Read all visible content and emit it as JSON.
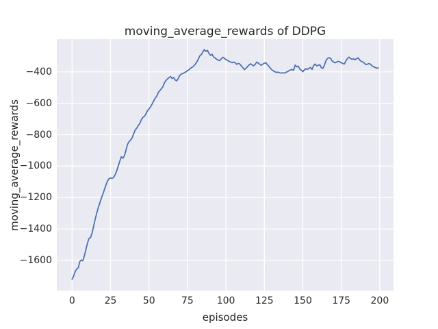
{
  "chart_data": {
    "type": "line",
    "title": "moving_average_rewards of DDPG",
    "xlabel": "episodes",
    "ylabel": "moving_average_rewards",
    "legend_position": "none",
    "grid": true,
    "plot_bg_color": "#EAEAF2",
    "grid_color": "#FFFFFF",
    "text_color": "#262626",
    "xlim": [
      -9.95,
      208.95
    ],
    "ylim": [
      -1792.8,
      -191.2
    ],
    "xticks": {
      "values": [
        0,
        25,
        50,
        75,
        100,
        125,
        150,
        175,
        200
      ],
      "labels": [
        "0",
        "25",
        "50",
        "75",
        "100",
        "125",
        "150",
        "175",
        "200"
      ]
    },
    "yticks": {
      "values": [
        -400,
        -600,
        -800,
        -1000,
        -1200,
        -1400,
        -1600
      ],
      "labels": [
        "−400",
        "−600",
        "−800",
        "−1000",
        "−1200",
        "−1400",
        "−1600"
      ]
    },
    "series": [
      {
        "name": "moving_average_rewards",
        "color": "#4C72B0",
        "line_width": 1.8,
        "x_start": 0,
        "x_step": 1,
        "values": [
          -1720,
          -1700,
          -1672,
          -1655,
          -1648,
          -1608,
          -1598,
          -1603,
          -1570,
          -1530,
          -1490,
          -1460,
          -1455,
          -1425,
          -1382,
          -1338,
          -1300,
          -1265,
          -1235,
          -1205,
          -1178,
          -1150,
          -1120,
          -1095,
          -1080,
          -1075,
          -1078,
          -1072,
          -1055,
          -1030,
          -1000,
          -968,
          -940,
          -950,
          -935,
          -900,
          -862,
          -845,
          -835,
          -820,
          -795,
          -770,
          -758,
          -742,
          -728,
          -705,
          -690,
          -683,
          -668,
          -648,
          -636,
          -622,
          -605,
          -585,
          -568,
          -555,
          -532,
          -520,
          -508,
          -495,
          -470,
          -455,
          -445,
          -436,
          -430,
          -442,
          -436,
          -452,
          -457,
          -442,
          -422,
          -414,
          -410,
          -405,
          -400,
          -392,
          -386,
          -377,
          -371,
          -364,
          -352,
          -338,
          -320,
          -298,
          -290,
          -272,
          -258,
          -270,
          -263,
          -283,
          -295,
          -288,
          -305,
          -312,
          -320,
          -325,
          -328,
          -317,
          -307,
          -313,
          -322,
          -326,
          -333,
          -337,
          -341,
          -338,
          -342,
          -352,
          -346,
          -350,
          -362,
          -373,
          -386,
          -377,
          -367,
          -356,
          -349,
          -356,
          -361,
          -353,
          -338,
          -343,
          -352,
          -358,
          -350,
          -345,
          -342,
          -355,
          -365,
          -378,
          -388,
          -395,
          -400,
          -404,
          -402,
          -406,
          -408,
          -405,
          -408,
          -403,
          -399,
          -393,
          -388,
          -385,
          -390,
          -357,
          -368,
          -363,
          -382,
          -389,
          -399,
          -387,
          -380,
          -384,
          -377,
          -372,
          -384,
          -360,
          -350,
          -362,
          -358,
          -354,
          -373,
          -378,
          -358,
          -330,
          -315,
          -310,
          -313,
          -330,
          -338,
          -342,
          -337,
          -333,
          -336,
          -342,
          -347,
          -350,
          -330,
          -315,
          -306,
          -315,
          -320,
          -317,
          -323,
          -315,
          -311,
          -325,
          -333,
          -336,
          -345,
          -354,
          -351,
          -347,
          -352,
          -362,
          -367,
          -372,
          -376,
          -375
        ]
      }
    ]
  }
}
